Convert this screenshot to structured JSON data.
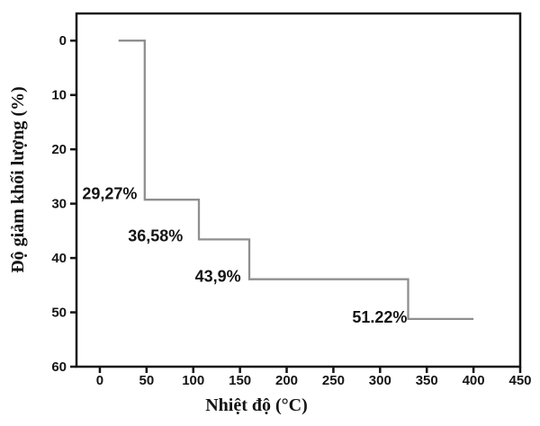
{
  "chart_data": {
    "type": "line",
    "subtype": "step",
    "title": "",
    "xlabel": "Nhiệt độ (°C)",
    "ylabel": "Độ giảm khối lượng (%)",
    "xlim": [
      -25,
      450
    ],
    "ylim": [
      -5,
      60
    ],
    "y_inverted": true,
    "grid": false,
    "legend": false,
    "x_ticks": [
      0,
      50,
      100,
      150,
      200,
      250,
      300,
      350,
      400,
      450
    ],
    "y_ticks": [
      0,
      10,
      20,
      30,
      40,
      50,
      60
    ],
    "series": [
      {
        "name": "mass-loss-step-curve",
        "color": "#8f8f8f",
        "points": [
          [
            20,
            0
          ],
          [
            48,
            0
          ],
          [
            48,
            29.27
          ],
          [
            106,
            29.27
          ],
          [
            106,
            36.58
          ],
          [
            160,
            36.58
          ],
          [
            160,
            43.9
          ],
          [
            330,
            43.9
          ],
          [
            330,
            51.22
          ],
          [
            400,
            51.22
          ]
        ]
      }
    ],
    "annotations": [
      {
        "text": "29,27%",
        "x": 40,
        "y": 28.2,
        "anchor": "end"
      },
      {
        "text": "36,58%",
        "x": 89,
        "y": 35.9,
        "anchor": "end"
      },
      {
        "text": "43,9%",
        "x": 151,
        "y": 43.4,
        "anchor": "end"
      },
      {
        "text": "51.22%",
        "x": 329,
        "y": 50.9,
        "anchor": "end"
      }
    ],
    "colors": {
      "axis": "#141414",
      "curve": "#8f8f8f",
      "text": "#141414",
      "background": "#ffffff"
    }
  }
}
